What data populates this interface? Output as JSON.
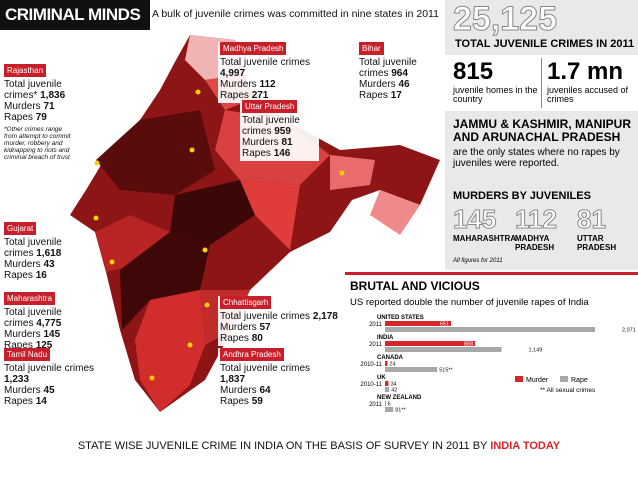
{
  "header": {
    "title": "CRIMINAL MINDS",
    "subtitle": "A bulk of juvenile crimes was committed in nine states in 2011"
  },
  "states": [
    {
      "name": "Rajasthan",
      "crimes_label": "Total juvenile crimes*",
      "crimes": "1,836",
      "murders_label": "Murders",
      "murders": "71",
      "rapes_label": "Rapes",
      "rapes": "79",
      "note": "*Other crimes range from attempt to commit murder, robbery and kidnapping to riots and criminal breach of trust"
    },
    {
      "name": "Madhya Pradesh",
      "crimes_label": "Total juvenile crimes",
      "crimes": "4,997",
      "murders_label": "Murders",
      "murders": "112",
      "rapes_label": "Rapes",
      "rapes": "271"
    },
    {
      "name": "Bihar",
      "crimes_label": "Total juvenile crimes",
      "crimes": "964",
      "murders_label": "Murders",
      "murders": "46",
      "rapes_label": "Rapes",
      "rapes": "17"
    },
    {
      "name": "Uttar Pradesh",
      "crimes_label": "Total juvenile crimes",
      "crimes": "959",
      "murders_label": "Murders",
      "murders": "81",
      "rapes_label": "Rapes",
      "rapes": "146"
    },
    {
      "name": "Gujarat",
      "crimes_label": "Total juvenile crimes",
      "crimes": "1,618",
      "murders_label": "Murders",
      "murders": "43",
      "rapes_label": "Rapes",
      "rapes": "16"
    },
    {
      "name": "Maharashtra",
      "crimes_label": "Total juvenile crimes",
      "crimes": "4,775",
      "murders_label": "Murders",
      "murders": "145",
      "rapes_label": "Rapes",
      "rapes": "125"
    },
    {
      "name": "Chhattisgarh",
      "crimes_label": "Total juvenile crimes",
      "crimes": "2,178",
      "murders_label": "Murders",
      "murders": "57",
      "rapes_label": "Rapes",
      "rapes": "80"
    },
    {
      "name": "Tamil Nadu",
      "crimes_label": "Total juvenile crimes",
      "crimes": "1,233",
      "murders_label": "Murders",
      "murders": "45",
      "rapes_label": "Rapes",
      "rapes": "14"
    },
    {
      "name": "Andhra Pradesh",
      "crimes_label": "Total juvenile crimes",
      "crimes": "1,837",
      "murders_label": "Murders",
      "murders": "64",
      "rapes_label": "Rapes",
      "rapes": "59"
    }
  ],
  "stats": {
    "total": "25,125",
    "total_label": "TOTAL JUVENILE CRIMES IN 2011",
    "homes": "815",
    "homes_label": "juvenile homes in the country",
    "accused": "1.7 mn",
    "accused_label": "juveniles accused of crimes",
    "norape_title": "JAMMU & KASHMIR, MANIPUR AND ARUNACHAL PRADESH",
    "norape_text": "are the only states where no rapes by juveniles were reported.",
    "murders_title": "MURDERS BY JUVENILES",
    "murders": [
      {
        "value": "145",
        "state": "MAHARASHTRA"
      },
      {
        "value": "112",
        "state": "MADHYA PRADESH"
      },
      {
        "value": "81",
        "state": "UTTAR PRADESH"
      }
    ],
    "footnote": "All figures for 2011"
  },
  "chart_data": {
    "type": "bar",
    "title": "BRUTAL AND VICIOUS",
    "subtitle": "US reported double the number of juvenile rapes of India",
    "categories": [
      "UNITED STATES",
      "INDIA",
      "CANADA",
      "UK",
      "NEW ZEALAND"
    ],
    "years": [
      "2011",
      "2011",
      "2010-11",
      "2010-11",
      "2011"
    ],
    "series": [
      {
        "name": "Murder",
        "color": "#d7262b",
        "values": [
          651,
          888,
          24,
          34,
          6
        ]
      },
      {
        "name": "Rape",
        "color": "#a8a8a8",
        "values": [
          2071,
          1149,
          515,
          42,
          81
        ],
        "value_labels": [
          "2,071",
          "1,149",
          "515**",
          "42",
          "81**"
        ]
      }
    ],
    "note": "** All sexual crimes"
  },
  "caption": {
    "text": "STATE WISE JUVENILE CRIME IN INDIA ON THE BASIS OF SURVEY IN 2011 BY ",
    "source": "INDIA TODAY"
  }
}
